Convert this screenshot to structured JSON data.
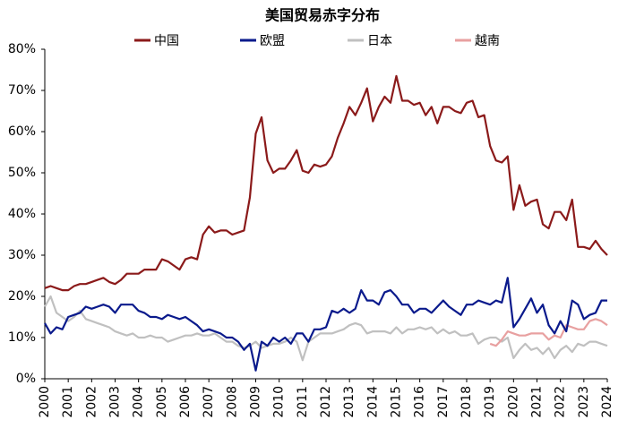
{
  "chart_data": {
    "type": "line",
    "title": "美国贸易赤字分布",
    "x": [
      2000,
      2000.25,
      2000.5,
      2000.75,
      2001,
      2001.25,
      2001.5,
      2001.75,
      2002,
      2002.25,
      2002.5,
      2002.75,
      2003,
      2003.25,
      2003.5,
      2003.75,
      2004,
      2004.25,
      2004.5,
      2004.75,
      2005,
      2005.25,
      2005.5,
      2005.75,
      2006,
      2006.25,
      2006.5,
      2006.75,
      2007,
      2007.25,
      2007.5,
      2007.75,
      2008,
      2008.25,
      2008.5,
      2008.75,
      2009,
      2009.25,
      2009.5,
      2009.75,
      2010,
      2010.25,
      2010.5,
      2010.75,
      2011,
      2011.25,
      2011.5,
      2011.75,
      2012,
      2012.25,
      2012.5,
      2012.75,
      2013,
      2013.25,
      2013.5,
      2013.75,
      2014,
      2014.25,
      2014.5,
      2014.75,
      2015,
      2015.25,
      2015.5,
      2015.75,
      2016,
      2016.25,
      2016.5,
      2016.75,
      2017,
      2017.25,
      2017.5,
      2017.75,
      2018,
      2018.25,
      2018.5,
      2018.75,
      2019,
      2019.25,
      2019.5,
      2019.75,
      2020,
      2020.25,
      2020.5,
      2020.75,
      2021,
      2021.25,
      2021.5,
      2021.75,
      2022,
      2022.25,
      2022.5,
      2022.75,
      2023,
      2023.25,
      2023.5,
      2023.75,
      2024
    ],
    "series": [
      {
        "name": "中国",
        "color": "#8b1a1a",
        "values": [
          22,
          22.5,
          22,
          21.5,
          21.5,
          22.5,
          23,
          23,
          23.5,
          24,
          24.5,
          23.5,
          23,
          24,
          25.5,
          25.5,
          25.5,
          26.5,
          26.5,
          26.5,
          29,
          28.5,
          27.5,
          26.5,
          29,
          29.5,
          29,
          35,
          37,
          35.5,
          36,
          36,
          35,
          35.5,
          36,
          44,
          59.5,
          63.5,
          53,
          50,
          51,
          51,
          53,
          55.5,
          50.5,
          50,
          52,
          51.5,
          52,
          54,
          58.5,
          62,
          66,
          64,
          67,
          70.5,
          62.5,
          66,
          68.5,
          67,
          73.5,
          67.5,
          67.5,
          66.5,
          67,
          64,
          66,
          62,
          66,
          66,
          65,
          64.5,
          67,
          67.5,
          63.5,
          64,
          56.5,
          53,
          52.5,
          54,
          41,
          47,
          42,
          43,
          43.5,
          37.5,
          36.5,
          40.5,
          40.5,
          38.5,
          43.5,
          32,
          32,
          31.5,
          33.5,
          31.5,
          30
        ]
      },
      {
        "name": "欧盟",
        "color": "#0a1a8c",
        "values": [
          13.5,
          11,
          12.5,
          12,
          15,
          15.5,
          16,
          17.5,
          17,
          17.5,
          18,
          17.5,
          16,
          18,
          18,
          18,
          16.5,
          16,
          15,
          15,
          14.5,
          15.5,
          15,
          14.5,
          15,
          14,
          13,
          11.5,
          12,
          11.5,
          11,
          10,
          10,
          9,
          7,
          8.5,
          2,
          9,
          8,
          10,
          9,
          10,
          8.5,
          11,
          11,
          9,
          12,
          12,
          12.5,
          16.5,
          16,
          17,
          16,
          17,
          21.5,
          19,
          19,
          18,
          21,
          21.5,
          20,
          18,
          18,
          16,
          17,
          17,
          16,
          17.5,
          19,
          17.5,
          16.5,
          15.5,
          18,
          18,
          19,
          18.5,
          18,
          19,
          18.5,
          24.5,
          12.5,
          14.5,
          17,
          19.5,
          16,
          18,
          13,
          11,
          14,
          11.5,
          19,
          18,
          14.5,
          15.5,
          16,
          19,
          19
        ]
      },
      {
        "name": "日本",
        "color": "#c0c0c0",
        "values": [
          17.5,
          20,
          16,
          15,
          14,
          15,
          16.5,
          14.5,
          14,
          13.5,
          13,
          12.5,
          11.5,
          11,
          10.5,
          11,
          10,
          10,
          10.5,
          10,
          10,
          9,
          9.5,
          10,
          10.5,
          10.5,
          11,
          10.5,
          10.5,
          11,
          10,
          9,
          9,
          8,
          7.5,
          8,
          9,
          7.5,
          8,
          8.5,
          8.5,
          9,
          10,
          9,
          4.5,
          9,
          10,
          11,
          11,
          11,
          11.5,
          12,
          13,
          13.5,
          13,
          11,
          11.5,
          11.5,
          11.5,
          11,
          12.5,
          11,
          12,
          12,
          12.5,
          12,
          12.5,
          11,
          12,
          11,
          11.5,
          10.5,
          10.5,
          11,
          8.5,
          9.5,
          10,
          10,
          9,
          10,
          5,
          7,
          8.5,
          7,
          7.5,
          6,
          7.5,
          5,
          7,
          8,
          6.5,
          8.5,
          8,
          9,
          9,
          8.5,
          8
        ]
      },
      {
        "name": "越南",
        "color": "#e8a0a0",
        "values": [
          null,
          null,
          null,
          null,
          null,
          null,
          null,
          null,
          null,
          null,
          null,
          null,
          null,
          null,
          null,
          null,
          null,
          null,
          null,
          null,
          null,
          null,
          null,
          null,
          null,
          null,
          null,
          null,
          null,
          null,
          null,
          null,
          null,
          null,
          null,
          null,
          null,
          null,
          null,
          null,
          null,
          null,
          null,
          null,
          null,
          null,
          null,
          null,
          null,
          null,
          null,
          null,
          null,
          null,
          null,
          null,
          null,
          null,
          null,
          null,
          null,
          null,
          null,
          null,
          null,
          null,
          null,
          null,
          null,
          null,
          null,
          null,
          null,
          null,
          null,
          null,
          8.5,
          8,
          9.5,
          11.5,
          11,
          10.5,
          10.5,
          11,
          11,
          11,
          9.5,
          10.5,
          10,
          13,
          12.5,
          12,
          12,
          14,
          14.5,
          14,
          13
        ]
      }
    ],
    "xlim": [
      2000,
      2024
    ],
    "xticks": [
      2000,
      2001,
      2002,
      2003,
      2004,
      2005,
      2006,
      2007,
      2008,
      2009,
      2010,
      2011,
      2012,
      2013,
      2014,
      2015,
      2016,
      2017,
      2018,
      2019,
      2020,
      2021,
      2022,
      2023,
      2024
    ],
    "ylim": [
      0,
      80
    ],
    "yticks": [
      {
        "value": 0,
        "label": "0%"
      },
      {
        "value": 10,
        "label": "10%"
      },
      {
        "value": 20,
        "label": "20%"
      },
      {
        "value": 30,
        "label": "30%"
      },
      {
        "value": 40,
        "label": "40%"
      },
      {
        "value": 50,
        "label": "50%"
      },
      {
        "value": 60,
        "label": "60%"
      },
      {
        "value": 70,
        "label": "70%"
      },
      {
        "value": 80,
        "label": "80%"
      }
    ],
    "legend": "top"
  }
}
